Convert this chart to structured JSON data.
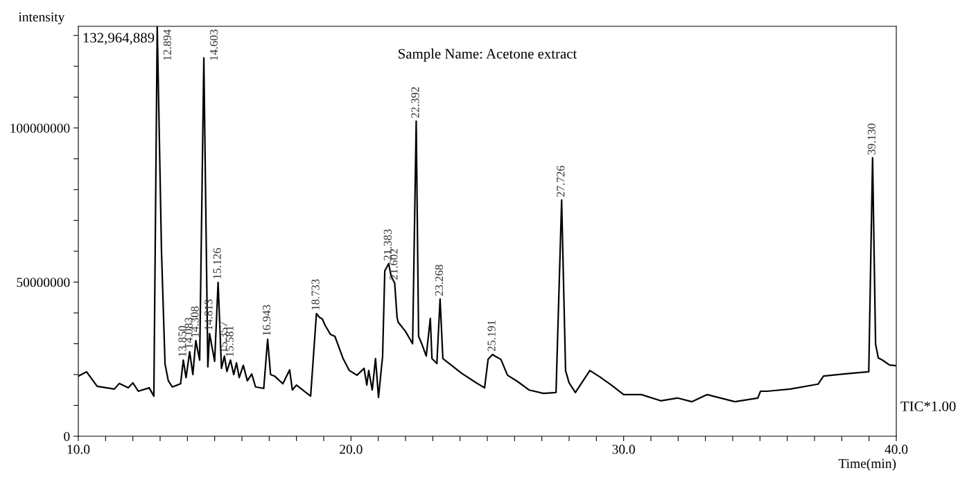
{
  "chart_data": {
    "type": "line",
    "title": "Sample Name: Acetone extract",
    "xlabel": "Time(min)",
    "ylabel": "intensity",
    "x": [
      10.0,
      10.3,
      10.69,
      11.32,
      11.5,
      11.83,
      12.0,
      12.2,
      12.6,
      12.77,
      12.894,
      13.05,
      13.18,
      13.3,
      13.45,
      13.75,
      13.85,
      13.95,
      14.083,
      14.2,
      14.308,
      14.45,
      14.603,
      14.75,
      14.813,
      15.0,
      15.126,
      15.25,
      15.357,
      15.45,
      15.581,
      15.7,
      15.8,
      15.9,
      16.05,
      16.2,
      16.36,
      16.5,
      16.8,
      16.943,
      17.05,
      17.2,
      17.5,
      17.75,
      17.85,
      18.0,
      18.52,
      18.733,
      18.85,
      18.95,
      19.05,
      19.25,
      19.41,
      19.71,
      19.94,
      20.22,
      20.48,
      20.58,
      20.65,
      20.78,
      20.9,
      21.01,
      21.16,
      21.24,
      21.383,
      21.47,
      21.602,
      21.69,
      21.73,
      22.0,
      22.26,
      22.392,
      22.48,
      22.59,
      22.76,
      22.91,
      22.97,
      23.15,
      23.268,
      23.37,
      24.06,
      24.6,
      24.9,
      25.03,
      25.191,
      25.28,
      25.5,
      25.74,
      26.1,
      26.53,
      27.06,
      27.52,
      27.726,
      27.87,
      28.0,
      28.23,
      28.76,
      29.12,
      29.55,
      30.0,
      30.65,
      31.36,
      31.97,
      32.5,
      33.06,
      34.08,
      34.92,
      35.02,
      35.27,
      36.11,
      37.13,
      37.33,
      38.07,
      38.99,
      39.13,
      39.24,
      39.34,
      39.49,
      39.75,
      40.0
    ],
    "series": [
      {
        "color": "#000000",
        "values": [
          19500000,
          20900000,
          16200000,
          15300000,
          17100000,
          15700000,
          17300000,
          14600000,
          15700000,
          13000000,
          132964889,
          60000000,
          23400000,
          18000000,
          16000000,
          17000000,
          24700000,
          19000000,
          27400000,
          20000000,
          31000000,
          24700000,
          122700000,
          22500000,
          33300000,
          24300000,
          49900000,
          22000000,
          26000000,
          21000000,
          24700000,
          20000000,
          23800000,
          19000000,
          23000000,
          18000000,
          20200000,
          16000000,
          15500000,
          31500000,
          20000000,
          19500000,
          17000000,
          21500000,
          15000000,
          16600000,
          13000000,
          39800000,
          38500000,
          38000000,
          36000000,
          33000000,
          32400000,
          25200000,
          21300000,
          19800000,
          22000000,
          16600000,
          21300000,
          15000000,
          25200000,
          12600000,
          26000000,
          53700000,
          56000000,
          52000000,
          49700000,
          38600000,
          37000000,
          34000000,
          30000000,
          102200000,
          32400000,
          30100000,
          26000000,
          38200000,
          25200000,
          23600000,
          44500000,
          25200000,
          20400000,
          17300000,
          15700000,
          25000000,
          26500000,
          26000000,
          24900000,
          19800000,
          17800000,
          15000000,
          13900000,
          14200000,
          76600000,
          21300000,
          17300000,
          14200000,
          21300000,
          19300000,
          16600000,
          13500000,
          13500000,
          11500000,
          12400000,
          11200000,
          13500000,
          11200000,
          12400000,
          14600000,
          14600000,
          15300000,
          16900000,
          19500000,
          20200000,
          20900000,
          90300000,
          29900000,
          25400000,
          24700000,
          23100000,
          22900000
        ]
      }
    ],
    "xlim": [
      10.0,
      40.0
    ],
    "xticks": [
      {
        "value": 10,
        "label": "10.0"
      },
      {
        "value": 11,
        "label": null
      },
      {
        "value": 12,
        "label": null
      },
      {
        "value": 13,
        "label": null
      },
      {
        "value": 14,
        "label": null
      },
      {
        "value": 15,
        "label": null
      },
      {
        "value": 16,
        "label": null
      },
      {
        "value": 17,
        "label": null
      },
      {
        "value": 18,
        "label": null
      },
      {
        "value": 19,
        "label": null
      },
      {
        "value": 20,
        "label": "20.0"
      },
      {
        "value": 21,
        "label": null
      },
      {
        "value": 22,
        "label": null
      },
      {
        "value": 23,
        "label": null
      },
      {
        "value": 24,
        "label": null
      },
      {
        "value": 25,
        "label": null
      },
      {
        "value": 26,
        "label": null
      },
      {
        "value": 27,
        "label": null
      },
      {
        "value": 28,
        "label": null
      },
      {
        "value": 29,
        "label": null
      },
      {
        "value": 30,
        "label": "30.0"
      },
      {
        "value": 31,
        "label": null
      },
      {
        "value": 32,
        "label": null
      },
      {
        "value": 33,
        "label": null
      },
      {
        "value": 34,
        "label": null
      },
      {
        "value": 35,
        "label": null
      },
      {
        "value": 36,
        "label": null
      },
      {
        "value": 37,
        "label": null
      },
      {
        "value": 38,
        "label": null
      },
      {
        "value": 39,
        "label": null
      },
      {
        "value": 40,
        "label": "40.0"
      }
    ],
    "ylim": [
      0,
      132964889
    ],
    "yticks": [
      0,
      {
        "value": 10000000,
        "label": null
      },
      {
        "value": 20000000,
        "label": null
      },
      {
        "value": 30000000,
        "label": null
      },
      {
        "value": 40000000,
        "label": null
      },
      50000000,
      {
        "value": 60000000,
        "label": null
      },
      {
        "value": 70000000,
        "label": null
      },
      {
        "value": 80000000,
        "label": null
      },
      {
        "value": 90000000,
        "label": null
      },
      100000000,
      {
        "value": 110000000,
        "label": null
      },
      {
        "value": 120000000,
        "label": null
      },
      {
        "value": 130000000,
        "label": null
      }
    ],
    "grid": false,
    "legend": false,
    "marker": "none",
    "line_style": "solid",
    "annotations": [
      "132,964,889",
      "TIC*1.00",
      {
        "text": "12.894",
        "x": 12.894,
        "y": 132964889
      },
      {
        "text": "13.850",
        "x": 13.85,
        "y": 24700000
      },
      {
        "text": "14.083",
        "x": 14.083,
        "y": 27400000
      },
      {
        "text": "14.308",
        "x": 14.308,
        "y": 31000000
      },
      {
        "text": "14.603",
        "x": 14.603,
        "y": 122700000
      },
      {
        "text": "14.813",
        "x": 14.813,
        "y": 33300000
      },
      {
        "text": "15.126",
        "x": 15.126,
        "y": 49900000
      },
      {
        "text": "15.357",
        "x": 15.357,
        "y": 26000000
      },
      {
        "text": "15.581",
        "x": 15.581,
        "y": 24700000
      },
      {
        "text": "16.943",
        "x": 16.943,
        "y": 31500000
      },
      {
        "text": "18.733",
        "x": 18.733,
        "y": 39800000
      },
      {
        "text": "21.383",
        "x": 21.383,
        "y": 56000000
      },
      {
        "text": "21.602",
        "x": 21.602,
        "y": 49700000
      },
      {
        "text": "22.392",
        "x": 22.392,
        "y": 102200000
      },
      {
        "text": "23.268",
        "x": 23.268,
        "y": 44500000
      },
      {
        "text": "25.191",
        "x": 25.191,
        "y": 26500000
      },
      {
        "text": "27.726",
        "x": 27.726,
        "y": 76600000
      },
      {
        "text": "39.130",
        "x": 39.13,
        "y": 90300000
      }
    ]
  }
}
